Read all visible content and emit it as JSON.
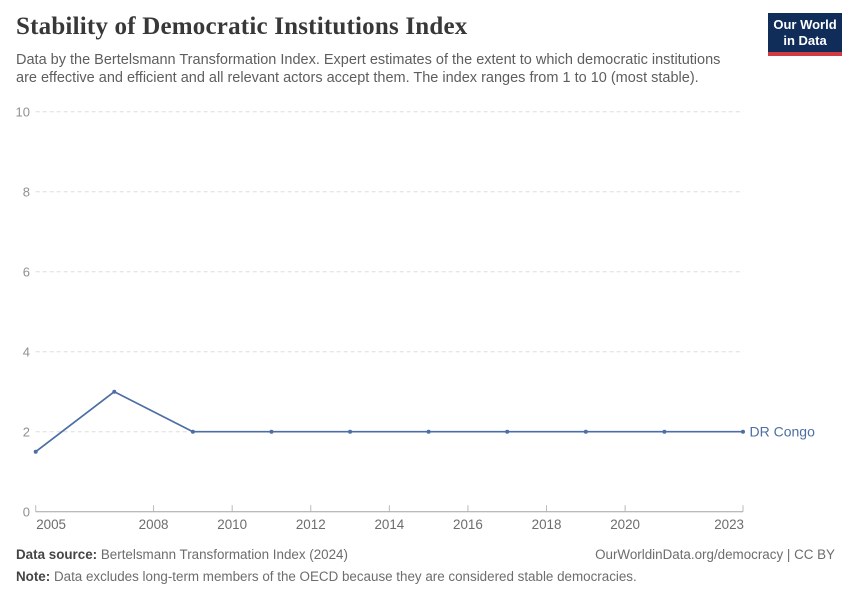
{
  "header": {
    "title": "Stability of Democratic Institutions Index",
    "subtitle_lines": [
      "Data by the Bertelsmann Transformation Index. Expert estimates of the extent to which democratic institutions",
      "are effective and efficient and all relevant actors accept them. The index ranges from 1 to 10 (most stable)."
    ],
    "logo": {
      "line1": "Our World",
      "line2": "in Data",
      "bg_color": "#102d5a",
      "bar_color": "#d13b42"
    }
  },
  "chart_data": {
    "type": "line",
    "title": "Stability of Democratic Institutions Index",
    "xlabel": "",
    "ylabel": "",
    "xlim": [
      2005,
      2023
    ],
    "ylim": [
      0,
      10
    ],
    "x_ticks": [
      2005,
      2008,
      2010,
      2012,
      2014,
      2016,
      2018,
      2020,
      2023
    ],
    "y_ticks": [
      0,
      2,
      4,
      6,
      8,
      10
    ],
    "grid": "horizontal-dashed",
    "legend_position": "end-of-line-label",
    "series": [
      {
        "name": "DR Congo",
        "color": "#4c6ea5",
        "points": [
          [
            2005,
            1.5
          ],
          [
            2007,
            3
          ],
          [
            2009,
            2
          ],
          [
            2011,
            2
          ],
          [
            2013,
            2
          ],
          [
            2015,
            2
          ],
          [
            2017,
            2
          ],
          [
            2019,
            2
          ],
          [
            2021,
            2
          ],
          [
            2023,
            2
          ]
        ]
      }
    ],
    "axis_colors": {
      "gridline": "#dddddd",
      "axis_line": "#a3a3a3",
      "tick_mark": "#bababa",
      "y_label": "#909090",
      "x_label": "#6d6d6d"
    }
  },
  "footer": {
    "source_label": "Data source:",
    "source_value": "Bertelsmann Transformation Index (2024)",
    "link_text": "OurWorldinData.org/democracy | CC BY",
    "note_label": "Note:",
    "note_value": "Data excludes long-term members of the OECD because they are considered stable democracies."
  }
}
